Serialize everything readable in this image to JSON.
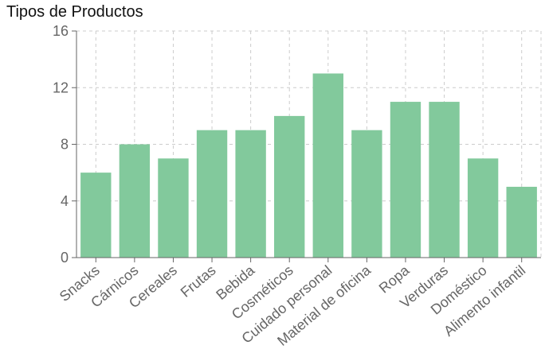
{
  "chart_data": {
    "type": "bar",
    "title": "Tipos de Productos",
    "xlabel": "",
    "ylabel": "",
    "categories": [
      "Snacks",
      "Cárnicos",
      "Cereales",
      "Frutas",
      "Bebida",
      "Cosméticos",
      "Cuidado personal",
      "Material de oficina",
      "Ropa",
      "Verduras",
      "Doméstico",
      "Alimento infantil"
    ],
    "values": [
      6,
      8,
      7,
      9,
      9,
      10,
      13,
      9,
      11,
      11,
      7,
      5
    ],
    "ylim": [
      0,
      16
    ],
    "yticks": [
      "0",
      "4",
      "8",
      "12",
      "16"
    ],
    "grid": true,
    "bar_color": "#82c99c",
    "axis_color": "#666666",
    "grid_color": "#cccccc"
  }
}
